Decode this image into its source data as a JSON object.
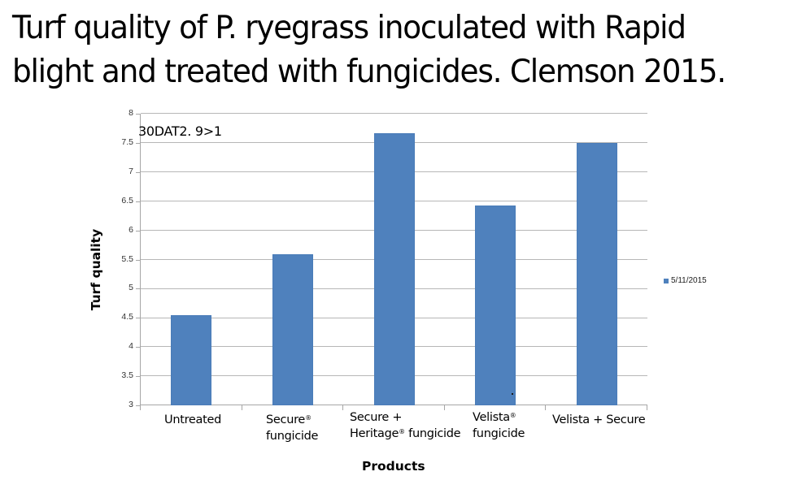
{
  "slide": {
    "title_lines": [
      "Turf quality of P. ryegrass inoculated with Rapid",
      "blight and treated with fungicides. Clemson 2015."
    ]
  },
  "chart_data": {
    "type": "bar",
    "title": "Turf quality of P. ryegrass inoculated with Rapid blight and treated with fungicides. Clemson 2015.",
    "categories": [
      "Untreated",
      "Secure® fungicide",
      "Secure + Heritage® fungicide",
      "Velista® fungicide",
      "Velista + Secure"
    ],
    "series": [
      {
        "name": "5/11/2015",
        "color": "#4f81bd",
        "values": [
          4.55,
          5.59,
          7.67,
          6.43,
          7.5
        ]
      }
    ],
    "xlabel": "Products",
    "ylabel": "Turf quality",
    "ylim": [
      3,
      8
    ],
    "yticks": [
      "3",
      "3.5",
      "4",
      "4.5",
      "5",
      "5.5",
      "6",
      "6.5",
      "7",
      "7.5",
      "8"
    ],
    "grid": true,
    "legend_position": "right",
    "annotations": [
      "30DAT2. 9>1"
    ]
  },
  "labels": {
    "x": [
      {
        "line1": "Untreated",
        "sup1": "",
        "line2": "",
        "sup2": ""
      },
      {
        "line1": "Secure",
        "sup1": "®",
        "line2": "fungicide",
        "sup2": ""
      },
      {
        "line1": "Secure +",
        "sup1": "",
        "line2": "Heritage",
        "sup2": "®",
        "line2b": " fungicide"
      },
      {
        "line1": "Velista",
        "sup1": "®",
        "line2": "fungicide",
        "sup2": ""
      },
      {
        "line1": "Velista + Secure",
        "sup1": "",
        "line2": "",
        "sup2": ""
      }
    ],
    "legend": "5/11/2015",
    "annotation": "30DAT2. 9>1",
    "xaxis_title": "Products",
    "yaxis_title": "Turf quality"
  }
}
